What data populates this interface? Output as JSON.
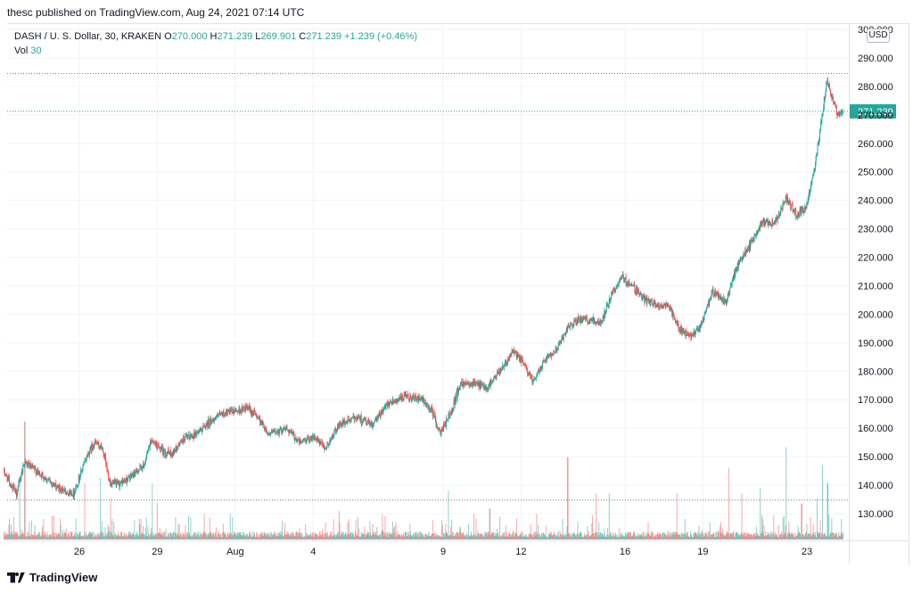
{
  "header": {
    "published": "thesc published on TradingView.com, Aug 24, 2021 07:14 UTC"
  },
  "legend": {
    "symbol": "DASH / U. S. Dollar, 30, KRAKEN",
    "o_key": "O",
    "o_val": "270.000",
    "h_key": "H",
    "h_val": "271.239",
    "l_key": "L",
    "l_val": "269.901",
    "c_key": "C",
    "c_val": "271.239",
    "change": "+1.239 (+0.46%)",
    "vol_key": "Vol",
    "vol_val": "30"
  },
  "currency_badge": "USD",
  "footer": {
    "brand": "TradingView"
  },
  "colors": {
    "up": "#26a69a",
    "down": "#ef5350",
    "grid": "#f0f3fa",
    "text": "#131722"
  },
  "chart_data": {
    "type": "candlestick",
    "ylim": [
      122,
      302
    ],
    "y_ticks": [
      130,
      140,
      150,
      160,
      170,
      180,
      190,
      200,
      210,
      220,
      230,
      240,
      250,
      260,
      270,
      280,
      290,
      300
    ],
    "y_tick_labels": [
      "130.000",
      "140.000",
      "150.000",
      "160.000",
      "170.000",
      "180.000",
      "190.000",
      "200.000",
      "210.000",
      "220.000",
      "230.000",
      "240.000",
      "250.000",
      "260.000",
      "270.000",
      "280.000",
      "290.000",
      "300.000"
    ],
    "x_ticks": [
      {
        "day": 26,
        "label": "26"
      },
      {
        "day": 29,
        "label": "29"
      },
      {
        "day": 32,
        "label": "Aug"
      },
      {
        "day": 35,
        "label": "4"
      },
      {
        "day": 40,
        "label": "9"
      },
      {
        "day": 43,
        "label": "12"
      },
      {
        "day": 47,
        "label": "16"
      },
      {
        "day": 50,
        "label": "19"
      },
      {
        "day": 54,
        "label": "23"
      }
    ],
    "x_range_days": [
      23.1,
      55.4
    ],
    "last_price": 271.239,
    "last_price_label": "271.239",
    "high_marker": 284.5,
    "volume_marker_level": 0.7,
    "trend_keypoints": [
      [
        23.1,
        145
      ],
      [
        23.4,
        140
      ],
      [
        23.6,
        137
      ],
      [
        23.9,
        148
      ],
      [
        24.5,
        144
      ],
      [
        25.2,
        139
      ],
      [
        25.8,
        137
      ],
      [
        26.3,
        150
      ],
      [
        26.6,
        155
      ],
      [
        26.9,
        153
      ],
      [
        27.2,
        141
      ],
      [
        27.5,
        140
      ],
      [
        28.0,
        143
      ],
      [
        28.5,
        147
      ],
      [
        28.8,
        156
      ],
      [
        29.2,
        152
      ],
      [
        29.6,
        151
      ],
      [
        30.0,
        156
      ],
      [
        30.5,
        158
      ],
      [
        31.0,
        162
      ],
      [
        31.5,
        165
      ],
      [
        32.0,
        166
      ],
      [
        32.5,
        167
      ],
      [
        32.9,
        164
      ],
      [
        33.3,
        158
      ],
      [
        34.0,
        160
      ],
      [
        34.5,
        155
      ],
      [
        35.0,
        157
      ],
      [
        35.5,
        153
      ],
      [
        36.0,
        161
      ],
      [
        36.7,
        164
      ],
      [
        37.3,
        161
      ],
      [
        37.9,
        169
      ],
      [
        38.6,
        171
      ],
      [
        39.2,
        170
      ],
      [
        39.6,
        166
      ],
      [
        39.9,
        158
      ],
      [
        40.3,
        165
      ],
      [
        40.7,
        176
      ],
      [
        41.2,
        176
      ],
      [
        41.7,
        174
      ],
      [
        42.2,
        180
      ],
      [
        42.7,
        187
      ],
      [
        43.1,
        183
      ],
      [
        43.5,
        176
      ],
      [
        43.9,
        184
      ],
      [
        44.4,
        188
      ],
      [
        44.8,
        195
      ],
      [
        45.2,
        198
      ],
      [
        45.7,
        198
      ],
      [
        46.1,
        197
      ],
      [
        46.5,
        207
      ],
      [
        46.9,
        213
      ],
      [
        47.3,
        210
      ],
      [
        47.8,
        205
      ],
      [
        48.3,
        203
      ],
      [
        48.7,
        203
      ],
      [
        49.1,
        195
      ],
      [
        49.5,
        192
      ],
      [
        49.9,
        195
      ],
      [
        50.4,
        208
      ],
      [
        50.9,
        204
      ],
      [
        51.3,
        216
      ],
      [
        51.8,
        224
      ],
      [
        52.3,
        232
      ],
      [
        52.8,
        232
      ],
      [
        53.2,
        241
      ],
      [
        53.6,
        235
      ],
      [
        54.0,
        238
      ],
      [
        54.3,
        250
      ],
      [
        54.6,
        269
      ],
      [
        54.8,
        282
      ],
      [
        55.0,
        276
      ],
      [
        55.2,
        270
      ],
      [
        55.4,
        271
      ]
    ],
    "volume_spikes": [
      [
        23.7,
        0.62
      ],
      [
        23.9,
        1.15
      ],
      [
        26.2,
        0.55
      ],
      [
        26.8,
        0.6
      ],
      [
        27.2,
        0.4
      ],
      [
        28.8,
        0.55
      ],
      [
        29.0,
        0.36
      ],
      [
        30.8,
        0.25
      ],
      [
        36.0,
        0.28
      ],
      [
        40.2,
        0.48
      ],
      [
        41.8,
        0.3
      ],
      [
        43.6,
        0.25
      ],
      [
        44.8,
        0.8
      ],
      [
        45.9,
        0.45
      ],
      [
        46.4,
        0.45
      ],
      [
        49.0,
        0.45
      ],
      [
        51.0,
        0.7
      ],
      [
        51.5,
        0.45
      ],
      [
        52.2,
        0.5
      ],
      [
        53.2,
        0.9
      ],
      [
        53.8,
        0.35
      ],
      [
        54.4,
        0.4
      ],
      [
        54.6,
        0.72
      ],
      [
        54.8,
        0.55
      ]
    ]
  }
}
